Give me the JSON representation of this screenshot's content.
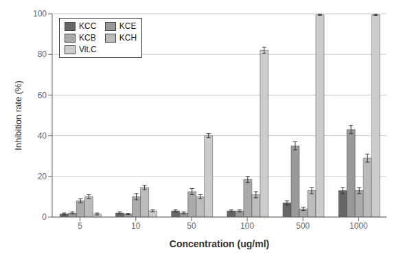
{
  "chart_data": {
    "type": "bar",
    "categories": [
      "5",
      "10",
      "50",
      "100",
      "500",
      "1000"
    ],
    "series": [
      {
        "name": "KCC",
        "color": "#666666",
        "values": [
          1.5,
          2.0,
          3.0,
          3.0,
          7.0,
          13.0
        ],
        "errors": [
          0.5,
          0.5,
          0.5,
          0.5,
          1.0,
          1.5
        ]
      },
      {
        "name": "KCE",
        "color": "#999999",
        "values": [
          2.0,
          1.5,
          2.0,
          3.0,
          35.0,
          43.0
        ],
        "errors": [
          0.5,
          0.3,
          0.5,
          0.5,
          2.0,
          2.0
        ]
      },
      {
        "name": "KCB",
        "color": "#aaaaaa",
        "values": [
          8.0,
          10.0,
          12.5,
          18.5,
          4.0,
          13.0
        ],
        "errors": [
          1.0,
          1.5,
          1.5,
          1.5,
          0.8,
          1.5
        ]
      },
      {
        "name": "KCH",
        "color": "#bbbbbb",
        "values": [
          10.0,
          14.5,
          10.0,
          11.0,
          13.0,
          29.0
        ],
        "errors": [
          1.0,
          1.0,
          1.0,
          1.5,
          1.5,
          2.0
        ]
      },
      {
        "name": "Vit.C",
        "color": "#cccccc",
        "values": [
          1.5,
          3.0,
          40.0,
          82.0,
          99.5,
          99.5
        ],
        "errors": [
          0.5,
          0.5,
          1.0,
          1.5,
          0.3,
          0.3
        ]
      }
    ],
    "xlabel": "Concentration (ug/ml)",
    "ylabel": "Inhibition rate (%)",
    "ylim": [
      0,
      100
    ],
    "yticks": [
      0,
      20,
      40,
      60,
      80,
      100
    ],
    "grid": true,
    "legend": "upper left"
  }
}
